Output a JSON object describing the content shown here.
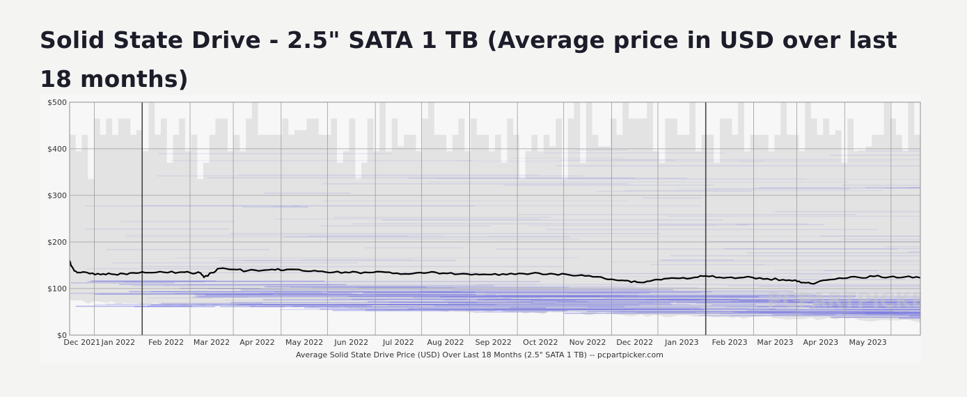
{
  "page": {
    "title": "Solid State Drive - 2.5\" SATA 1 TB (Average price in USD over last 18 months)"
  },
  "chart_data": {
    "type": "line",
    "caption": "Average Solid State Drive Price (USD) Over Last 18 Months (2.5\" SATA 1 TB) -- pcpartpicker.com",
    "watermark": "PCPARTPICKER",
    "ylim": [
      0,
      500
    ],
    "y_ticks": [
      "$0",
      "$100",
      "$200",
      "$300",
      "$400",
      "$500"
    ],
    "x_ticks": [
      "Dec 2021",
      "Jan 2022",
      "Feb 2022",
      "Mar 2022",
      "Apr 2022",
      "May 2022",
      "Jun 2022",
      "Jul 2022",
      "Aug 2022",
      "Sep 2022",
      "Oct 2022",
      "Nov 2022",
      "Dec 2022",
      "Jan 2023",
      "Feb 2023",
      "Mar 2023",
      "Apr 2023",
      "May 2023"
    ],
    "x_range": [
      "2021-11-15",
      "2023-05-20"
    ],
    "year_boundaries": [
      "2022-01-01",
      "2023-01-01"
    ],
    "grid": true,
    "colors": {
      "line": "#000000",
      "band": "#e3e3e3",
      "listing": "#6f6fe0",
      "grid": "#9a9a9a"
    },
    "series": [
      {
        "x": [
          "2021-11-15",
          "2021-11-16",
          "2021-11-18",
          "2021-11-22",
          "2021-11-28",
          "2021-12-05",
          "2021-12-12",
          "2021-12-20",
          "2021-12-28",
          "2022-01-05",
          "2022-01-15",
          "2022-01-25",
          "2022-02-01",
          "2022-02-08",
          "2022-02-10",
          "2022-02-15",
          "2022-02-20",
          "2022-03-01",
          "2022-03-10",
          "2022-03-20",
          "2022-03-28",
          "2022-04-05",
          "2022-04-15",
          "2022-04-25",
          "2022-05-05",
          "2022-05-15",
          "2022-05-25",
          "2022-06-05",
          "2022-06-15",
          "2022-06-25",
          "2022-07-05",
          "2022-07-15",
          "2022-07-25",
          "2022-08-05",
          "2022-08-15",
          "2022-08-25",
          "2022-09-05",
          "2022-09-15",
          "2022-09-25",
          "2022-10-05",
          "2022-10-15",
          "2022-10-25",
          "2022-11-01",
          "2022-11-10",
          "2022-11-15",
          "2022-11-20",
          "2022-11-28",
          "2022-12-05",
          "2022-12-15",
          "2022-12-25",
          "2023-01-01",
          "2023-01-10",
          "2023-01-20",
          "2023-01-31",
          "2023-02-10",
          "2023-02-20",
          "2023-02-28",
          "2023-03-05",
          "2023-03-12",
          "2023-03-20",
          "2023-03-31",
          "2023-04-10",
          "2023-04-20",
          "2023-04-30",
          "2023-05-10",
          "2023-05-20"
        ],
        "values": [
          160,
          148,
          138,
          134,
          132,
          130,
          131,
          132,
          133,
          134,
          135,
          135,
          134,
          133,
          124,
          134,
          143,
          141,
          138,
          139,
          140,
          141,
          138,
          137,
          135,
          134,
          135,
          136,
          133,
          132,
          134,
          133,
          131,
          131,
          130,
          130,
          132,
          133,
          131,
          129,
          127,
          125,
          120,
          117,
          115,
          113,
          118,
          121,
          122,
          124,
          127,
          124,
          122,
          124,
          121,
          119,
          118,
          113,
          110,
          118,
          122,
          124,
          126,
          125,
          125,
          123
        ]
      }
    ]
  }
}
